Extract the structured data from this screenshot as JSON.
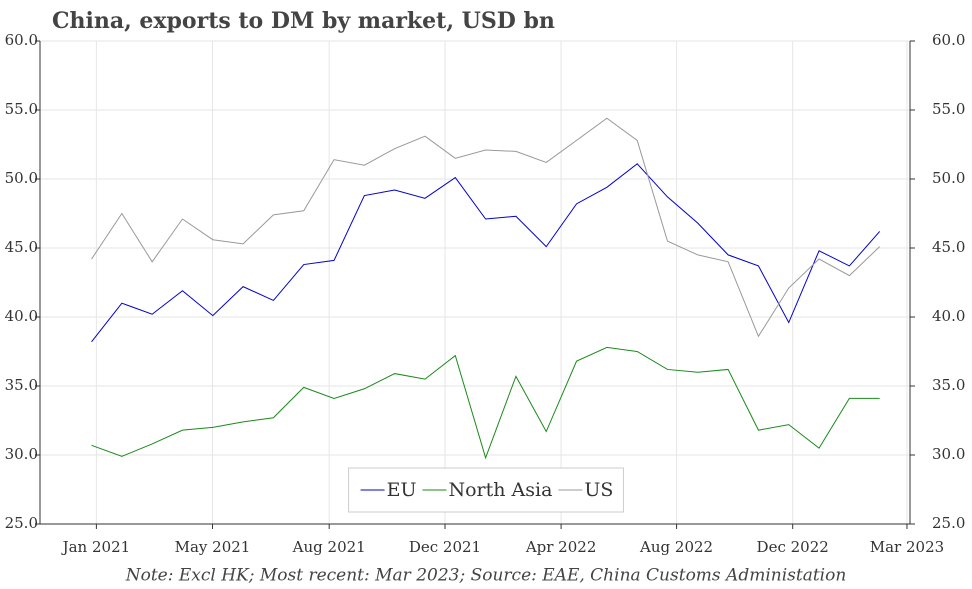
{
  "chart_data": {
    "type": "line",
    "title": "China, exports to DM by market, USD bn",
    "note": "Note: Excl HK; Most recent: Mar 2023; Source: EAE, China Customs Administation",
    "x": [
      0,
      1,
      2,
      3,
      4,
      5,
      6,
      7,
      8,
      9,
      10,
      11,
      12,
      13,
      14,
      15,
      16,
      17,
      18,
      19,
      20,
      21,
      22,
      23,
      24,
      25,
      26
    ],
    "series": [
      {
        "name": "EU",
        "color": "#0000cc",
        "values": [
          38.2,
          41.0,
          40.2,
          41.9,
          40.1,
          42.2,
          41.2,
          43.8,
          44.1,
          48.8,
          49.2,
          48.6,
          50.1,
          47.1,
          47.3,
          45.1,
          48.2,
          49.4,
          51.1,
          48.7,
          46.8,
          44.5,
          43.7,
          39.6,
          44.8,
          43.7,
          46.2
        ]
      },
      {
        "name": "North Asia",
        "color": "#1a8a1a",
        "values": [
          30.7,
          29.9,
          30.8,
          31.8,
          32.0,
          32.4,
          32.7,
          34.9,
          34.1,
          34.8,
          35.9,
          35.5,
          37.2,
          29.8,
          35.7,
          31.7,
          36.8,
          37.8,
          37.5,
          36.2,
          36.0,
          36.2,
          31.8,
          32.2,
          30.5,
          34.1,
          34.1
        ]
      },
      {
        "name": "US",
        "color": "#999999",
        "values": [
          44.2,
          47.5,
          44.0,
          47.1,
          45.6,
          45.3,
          47.4,
          47.7,
          51.4,
          51.0,
          52.2,
          53.1,
          51.5,
          52.1,
          52.0,
          51.2,
          52.8,
          54.4,
          52.8,
          45.5,
          44.5,
          44.0,
          38.6,
          42.1,
          44.2,
          43.0,
          45.1
        ]
      }
    ],
    "xlim": [
      -1.7,
      27.0
    ],
    "xticks": [
      {
        "value": 0.16,
        "label": "Jan 2021"
      },
      {
        "value": 3.99,
        "label": "May 2021"
      },
      {
        "value": 7.84,
        "label": "Aug 2021"
      },
      {
        "value": 11.66,
        "label": "Dec 2021"
      },
      {
        "value": 15.49,
        "label": "Apr 2022"
      },
      {
        "value": 19.3,
        "label": "Aug 2022"
      },
      {
        "value": 23.13,
        "label": "Dec 2022"
      },
      {
        "value": 26.9,
        "label": "Mar 2023"
      }
    ],
    "ylim": [
      25,
      60
    ],
    "yticks": [
      {
        "value": 25,
        "label": "25.0"
      },
      {
        "value": 30,
        "label": "30.0"
      },
      {
        "value": 35,
        "label": "35.0"
      },
      {
        "value": 40,
        "label": "40.0"
      },
      {
        "value": 45,
        "label": "45.0"
      },
      {
        "value": 50,
        "label": "50.0"
      },
      {
        "value": 55,
        "label": "55.0"
      },
      {
        "value": 60,
        "label": "60.0"
      }
    ],
    "grid": true,
    "legend": "bottom"
  }
}
